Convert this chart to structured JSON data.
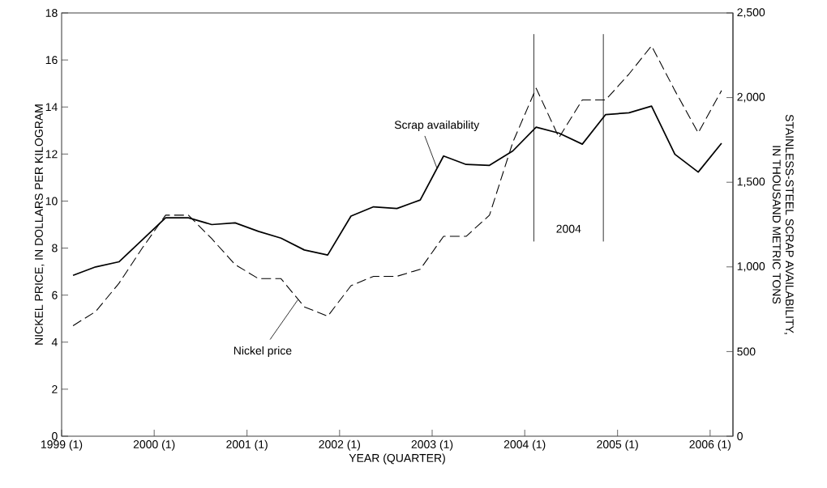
{
  "chart_data": {
    "type": "line",
    "xlabel": "YEAR (QUARTER)",
    "ylabel": "NICKEL PRICE, IN DOLLARS PER KILOGRAM",
    "y2label": "STAINLESS-STEEL SCRAP AVAILABILITY,\nIN THOUSAND METRIC TONS",
    "x": [
      "1999-02-15",
      "1999-05-15",
      "1999-08-15",
      "1999-11-15",
      "2000-02-15",
      "2000-05-15",
      "2000-08-15",
      "2000-11-15",
      "2001-02-15",
      "2001-05-15",
      "2001-08-15",
      "2001-11-15",
      "2002-02-15",
      "2002-05-15",
      "2002-08-15",
      "2002-11-15",
      "2003-02-15",
      "2003-05-15",
      "2003-08-15",
      "2003-11-15",
      "2004-02-15",
      "2004-05-15",
      "2004-08-15",
      "2004-11-15",
      "2005-02-15",
      "2005-05-15",
      "2005-08-15",
      "2005-11-15",
      "2006-02-15"
    ],
    "series": [
      {
        "name": "Nickel price",
        "color": "#000000",
        "line_style": "dashed",
        "values": [
          4.7,
          5.3,
          6.5,
          8.0,
          9.4,
          9.4,
          8.4,
          7.3,
          6.7,
          6.7,
          5.5,
          5.1,
          6.4,
          6.8,
          6.8,
          7.1,
          8.5,
          8.5,
          9.4,
          12.5,
          14.8,
          12.7,
          14.3,
          14.3,
          15.4,
          16.6,
          14.7,
          12.9,
          14.7
        ]
      },
      {
        "name": "Scrap availability",
        "color": "#000000",
        "line_style": "solid",
        "axis": "y2",
        "values": [
          950,
          1000,
          1030,
          1160,
          1290,
          1290,
          1250,
          1260,
          1210,
          1170,
          1100,
          1070,
          1300,
          1355,
          1345,
          1395,
          1655,
          1605,
          1600,
          1685,
          1825,
          1790,
          1725,
          1900,
          1910,
          1950,
          1665,
          1560,
          1730
        ]
      }
    ],
    "xlim": [
      "1999-01-01",
      "2006-04-01"
    ],
    "xticks": [
      {
        "value": "1999-01-01",
        "label": "1999 (1)"
      },
      {
        "value": "2000-01-01",
        "label": "2000 (1)"
      },
      {
        "value": "2001-01-01",
        "label": "2001 (1)"
      },
      {
        "value": "2002-01-01",
        "label": "2002 (1)"
      },
      {
        "value": "2003-01-01",
        "label": "2003 (1)"
      },
      {
        "value": "2004-01-01",
        "label": "2004 (1)"
      },
      {
        "value": "2005-01-01",
        "label": "2005 (1)"
      },
      {
        "value": "2006-01-01",
        "label": "2006 (1)"
      }
    ],
    "ylim": [
      0,
      18
    ],
    "yticks": [
      0,
      2,
      4,
      6,
      8,
      10,
      12,
      14,
      16,
      18
    ],
    "y2lim": [
      0,
      2500
    ],
    "y2ticks": [
      0,
      500,
      {
        "value": 1000,
        "label": "1,000"
      },
      {
        "value": 1500,
        "label": "1,500"
      },
      {
        "value": 2000,
        "label": "2,000"
      },
      {
        "value": 2500,
        "label": "2,500"
      }
    ],
    "ref_lines": [
      {
        "axis": "x",
        "value": "2004-02-06"
      },
      {
        "axis": "x",
        "value": "2004-11-06"
      }
    ],
    "annotations": [
      "2004"
    ]
  }
}
